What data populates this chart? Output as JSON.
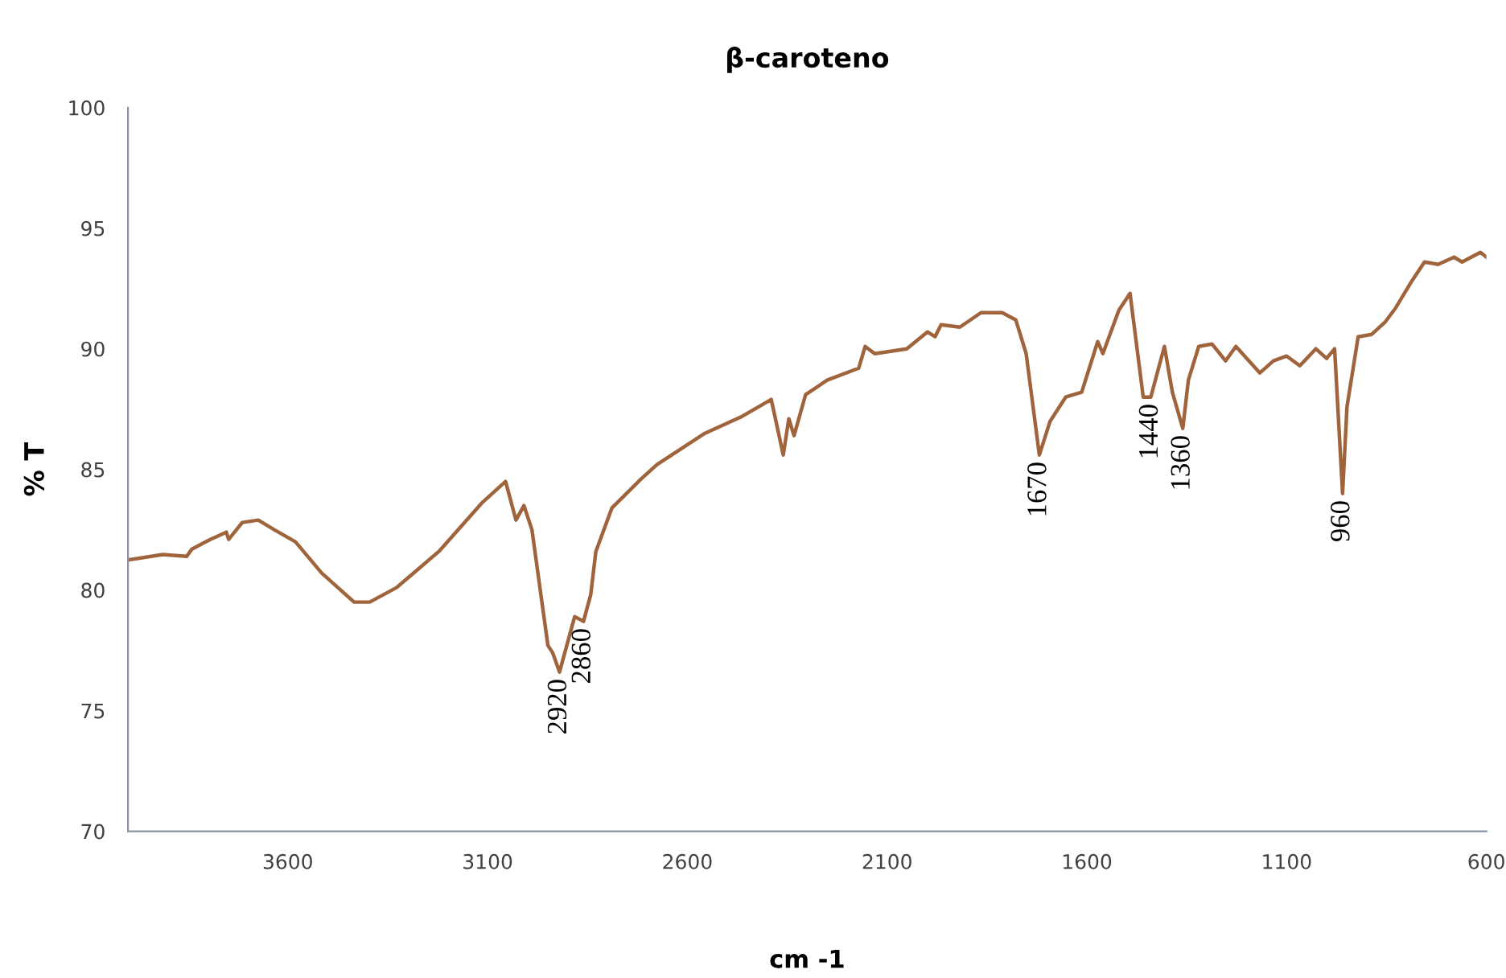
{
  "chart_data": {
    "type": "line",
    "title": "β-caroteno",
    "xlabel": "cm -1",
    "ylabel": "% T",
    "xlim": [
      4000,
      600
    ],
    "xticks": [
      3600,
      3100,
      2600,
      2100,
      1600,
      1100,
      600
    ],
    "ylim": [
      70,
      100
    ],
    "yticks": [
      70,
      75,
      80,
      85,
      90,
      95,
      100
    ],
    "grid": false,
    "legend": false,
    "x": [
      4000,
      3913,
      3853,
      3840,
      3794,
      3754,
      3748,
      3714,
      3674,
      3634,
      3581,
      3515,
      3434,
      3395,
      3328,
      3222,
      3115,
      3055,
      3029,
      3009,
      2989,
      2949,
      2937,
      2920,
      2882,
      2860,
      2842,
      2829,
      2789,
      2716,
      2676,
      2556,
      2463,
      2390,
      2360,
      2346,
      2333,
      2304,
      2250,
      2171,
      2155,
      2131,
      2051,
      1999,
      1980,
      1965,
      1918,
      1865,
      1812,
      1778,
      1752,
      1719,
      1692,
      1653,
      1613,
      1573,
      1560,
      1520,
      1492,
      1459,
      1440,
      1406,
      1386,
      1360,
      1346,
      1320,
      1287,
      1253,
      1227,
      1167,
      1133,
      1100,
      1067,
      1027,
      1000,
      980,
      960,
      949,
      921,
      887,
      854,
      827,
      787,
      755,
      721,
      681,
      661,
      615,
      600
    ],
    "series": [
      {
        "color": "#a0643c",
        "values": [
          81.25,
          81.47,
          81.4,
          81.7,
          82.1,
          82.4,
          82.1,
          82.8,
          82.9,
          82.5,
          82.0,
          80.7,
          79.5,
          79.5,
          80.1,
          81.6,
          83.6,
          84.5,
          82.9,
          83.5,
          82.5,
          77.7,
          77.4,
          76.6,
          78.9,
          78.7,
          79.8,
          81.6,
          83.4,
          84.6,
          85.2,
          86.5,
          87.2,
          87.9,
          85.6,
          87.1,
          86.4,
          88.1,
          88.7,
          89.2,
          90.1,
          89.8,
          90.0,
          90.7,
          90.5,
          91.0,
          90.9,
          91.5,
          91.5,
          91.2,
          89.8,
          85.6,
          87.0,
          88.0,
          88.2,
          90.3,
          89.8,
          91.6,
          92.3,
          88.0,
          88.0,
          90.1,
          88.2,
          86.7,
          88.7,
          90.1,
          90.2,
          89.5,
          90.1,
          89.0,
          89.5,
          89.7,
          89.3,
          90.0,
          89.6,
          90.0,
          84.0,
          87.6,
          90.5,
          90.6,
          91.1,
          91.7,
          92.8,
          93.6,
          93.5,
          93.8,
          93.6,
          94.0,
          93.8
        ]
      }
    ],
    "annotations": [
      {
        "text": "2920",
        "x": 2920,
        "y": 76.6
      },
      {
        "text": "2860",
        "x": 2860,
        "y": 78.7
      },
      {
        "text": "1670",
        "x": 1719,
        "y": 85.6
      },
      {
        "text": "1440",
        "x": 1440,
        "y": 88.0
      },
      {
        "text": "1360",
        "x": 1360,
        "y": 86.7
      },
      {
        "text": "960",
        "x": 960,
        "y": 84.0
      }
    ]
  }
}
